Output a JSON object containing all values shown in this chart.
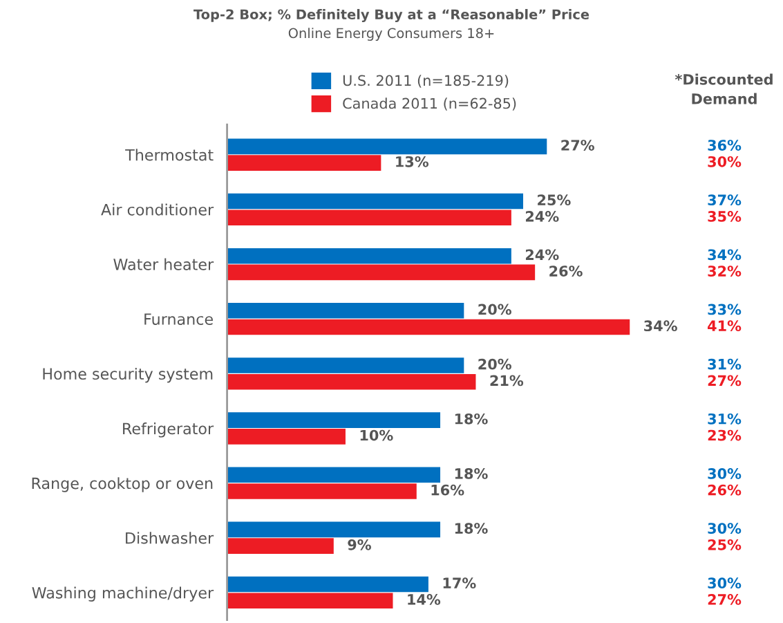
{
  "chart_data": {
    "type": "bar",
    "orientation": "horizontal",
    "title": "Top-2 Box; % Definitely Buy at a “Reasonable” Price",
    "subtitle": "Online Energy Consumers 18+",
    "categories": [
      "Thermostat",
      "Air conditioner",
      "Water heater",
      "Furnance",
      "Home security system",
      "Refrigerator",
      "Range, cooktop or oven",
      "Dishwasher",
      "Washing machine/dryer"
    ],
    "series": [
      {
        "name": "U.S. 2011 (n=185-219)",
        "color": "#0070c0",
        "values": [
          27,
          25,
          24,
          20,
          20,
          18,
          18,
          18,
          17
        ],
        "value_labels": [
          "27%",
          "25%",
          "24%",
          "20%",
          "20%",
          "18%",
          "18%",
          "18%",
          "17%"
        ]
      },
      {
        "name": "Canada 2011 (n=62-85)",
        "color": "#ed1c24",
        "values": [
          13,
          24,
          26,
          34,
          21,
          10,
          16,
          9,
          14
        ],
        "value_labels": [
          "13%",
          "24%",
          "26%",
          "34%",
          "21%",
          "10%",
          "16%",
          "9%",
          "14%"
        ]
      }
    ],
    "annotations": [
      "*Discounted\nDemand",
      "36%",
      "30%",
      "37%",
      "35%",
      "34%",
      "32%",
      "33%",
      "41%",
      "31%",
      "27%",
      "31%",
      "23%",
      "30%",
      "26%",
      "30%",
      "25%",
      "30%",
      "27%"
    ],
    "legend": "top",
    "tick_labels": "y",
    "grid": false
  }
}
